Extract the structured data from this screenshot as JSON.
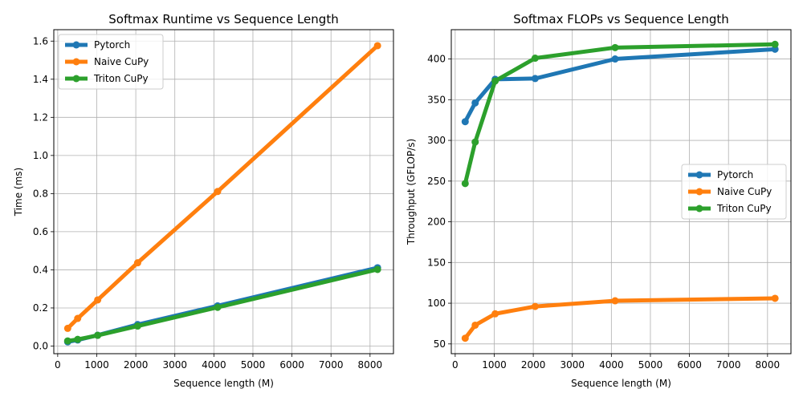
{
  "chart_data": [
    {
      "type": "line",
      "title": "Softmax Runtime vs Sequence Length",
      "xlabel": "Sequence length (M)",
      "ylabel": "Time (ms)",
      "xlim": [
        -100,
        8600
      ],
      "ylim": [
        -0.04,
        1.66
      ],
      "xticks": [
        0,
        1000,
        2000,
        3000,
        4000,
        5000,
        6000,
        7000,
        8000
      ],
      "yticks": [
        0.0,
        0.2,
        0.4,
        0.6,
        0.8,
        1.0,
        1.2,
        1.4,
        1.6
      ],
      "ytick_labels": [
        "0.0",
        "0.2",
        "0.4",
        "0.6",
        "0.8",
        "1.0",
        "1.2",
        "1.4",
        "1.6"
      ],
      "grid": true,
      "legend_position": "upper left",
      "x": [
        256,
        512,
        1024,
        2048,
        4096,
        8192
      ],
      "series": [
        {
          "name": "Pytorch",
          "color": "#1f77b4",
          "values": [
            0.022,
            0.032,
            0.057,
            0.113,
            0.211,
            0.411
          ]
        },
        {
          "name": "Naive CuPy",
          "color": "#ff7f0e",
          "values": [
            0.093,
            0.145,
            0.242,
            0.437,
            0.811,
            1.576
          ]
        },
        {
          "name": "Triton CuPy",
          "color": "#2ca02c",
          "values": [
            0.027,
            0.035,
            0.056,
            0.105,
            0.203,
            0.402
          ]
        }
      ]
    },
    {
      "type": "line",
      "title": "Softmax FLOPs vs Sequence Length",
      "xlabel": "Sequence length (M)",
      "ylabel": "Throughput (GFLOP/s)",
      "xlim": [
        -100,
        8600
      ],
      "ylim": [
        38,
        436
      ],
      "xticks": [
        0,
        1000,
        2000,
        3000,
        4000,
        5000,
        6000,
        7000,
        8000
      ],
      "yticks": [
        50,
        100,
        150,
        200,
        250,
        300,
        350,
        400
      ],
      "ytick_labels": [
        "50",
        "100",
        "150",
        "200",
        "250",
        "300",
        "350",
        "400"
      ],
      "grid": true,
      "legend_position": "center right",
      "x": [
        256,
        512,
        1024,
        2048,
        4096,
        8192
      ],
      "series": [
        {
          "name": "Pytorch",
          "color": "#1f77b4",
          "values": [
            323,
            346,
            375,
            376,
            400,
            412
          ]
        },
        {
          "name": "Naive CuPy",
          "color": "#ff7f0e",
          "values": [
            57,
            73,
            87,
            96,
            103,
            106
          ]
        },
        {
          "name": "Triton CuPy",
          "color": "#2ca02c",
          "values": [
            247,
            298,
            373,
            401,
            414,
            418
          ]
        }
      ]
    }
  ]
}
